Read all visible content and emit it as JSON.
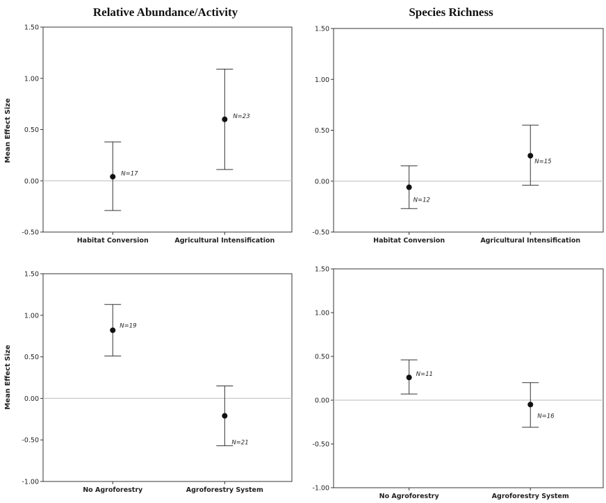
{
  "figure": {
    "column_titles": [
      "Relative Abundance/Activity",
      "Species Richness"
    ]
  },
  "chart_data": [
    {
      "type": "errorbar",
      "title": "Relative Abundance/Activity",
      "xlabel": "",
      "ylabel": "Mean Effect Size",
      "ylim": [
        -0.5,
        1.5
      ],
      "yticks": [
        "1.50",
        "1.00",
        "0.50",
        "0.00",
        "-0.50"
      ],
      "ytick_values": [
        1.5,
        1.0,
        0.5,
        0.0,
        -0.5
      ],
      "reference_line": 0,
      "categories": [
        "Habitat Conversion",
        "Agricultural Intensification"
      ],
      "means": [
        0.04,
        0.6
      ],
      "lower": [
        -0.29,
        0.11
      ],
      "upper": [
        0.38,
        1.09
      ],
      "n_labels": [
        "N=17",
        "N=23"
      ]
    },
    {
      "type": "errorbar",
      "title": "Species Richness",
      "xlabel": "",
      "ylabel": "",
      "ylim": [
        -0.5,
        1.5
      ],
      "yticks": [
        "1.50",
        "1.00",
        "0.50",
        "0.00",
        "-0.50"
      ],
      "ytick_values": [
        1.5,
        1.0,
        0.5,
        0.0,
        -0.5
      ],
      "reference_line": 0,
      "categories": [
        "Habitat Conversion",
        "Agricultural Intensification"
      ],
      "means": [
        -0.06,
        0.25
      ],
      "lower": [
        -0.27,
        -0.04
      ],
      "upper": [
        0.15,
        0.55
      ],
      "n_labels": [
        "N=12",
        "N=15"
      ]
    },
    {
      "type": "errorbar",
      "title": "",
      "xlabel": "",
      "ylabel": "Mean Effect Size",
      "ylim": [
        -1.0,
        1.5
      ],
      "yticks": [
        "1.50",
        "1.00",
        "0.50",
        "0.00",
        "-0.50",
        "-1.00"
      ],
      "ytick_values": [
        1.5,
        1.0,
        0.5,
        0.0,
        -0.5,
        -1.0
      ],
      "reference_line": 0,
      "categories": [
        "No Agroforestry",
        "Agroforestry System"
      ],
      "means": [
        0.82,
        -0.21
      ],
      "lower": [
        0.51,
        -0.57
      ],
      "upper": [
        1.13,
        0.15
      ],
      "n_labels": [
        "N=19",
        "N=21"
      ]
    },
    {
      "type": "errorbar",
      "title": "",
      "xlabel": "",
      "ylabel": "",
      "ylim": [
        -1.0,
        1.5
      ],
      "yticks": [
        "1.50",
        "1.00",
        "0.50",
        "0.00",
        "-0.50",
        "-1.00"
      ],
      "ytick_values": [
        1.5,
        1.0,
        0.5,
        0.0,
        -0.5,
        -1.0
      ],
      "reference_line": 0,
      "categories": [
        "No Agroforestry",
        "Agroforestry System"
      ],
      "means": [
        0.26,
        -0.05
      ],
      "lower": [
        0.07,
        -0.31
      ],
      "upper": [
        0.46,
        0.2
      ],
      "n_labels": [
        "N=11",
        "N=16"
      ]
    }
  ]
}
